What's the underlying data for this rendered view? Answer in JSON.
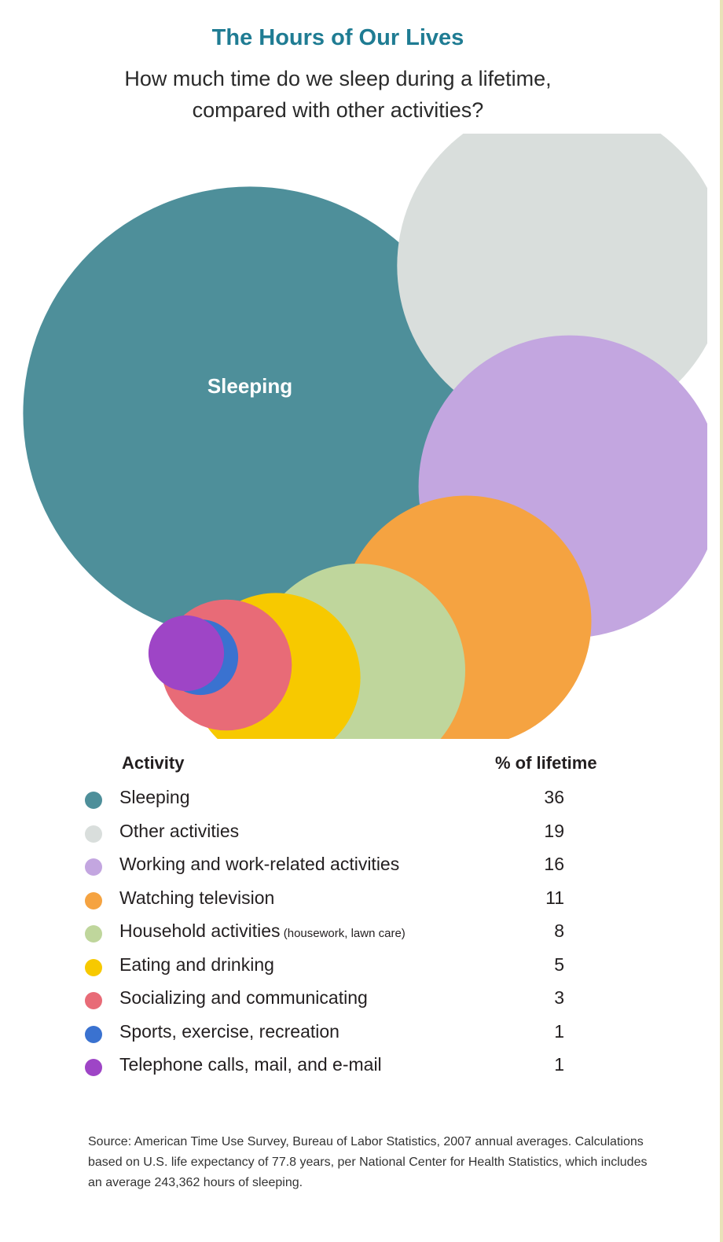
{
  "header": {
    "title": "The Hours of Our Lives",
    "subtitle": "How much time do we sleep during a lifetime, compared with other activities?"
  },
  "table": {
    "activity_header": "Activity",
    "value_header": "% of lifetime"
  },
  "chart_data": {
    "type": "bubble",
    "title": "The Hours of Our Lives",
    "subtitle": "How much time do we sleep during a lifetime, compared with other activities?",
    "value_unit": "% of lifetime",
    "categories": [
      "Sleeping",
      "Other activities",
      "Working and work-related activities",
      "Watching television",
      "Household activities",
      "Eating and drinking",
      "Socializing and communicating",
      "Sports, exercise, recreation",
      "Telephone calls, mail, and e-mail"
    ],
    "category_notes": [
      "",
      "",
      "",
      "",
      "(housework, lawn care)",
      "",
      "",
      "",
      ""
    ],
    "values": [
      36,
      19,
      16,
      11,
      8,
      5,
      3,
      1,
      1
    ],
    "colors": [
      "#4e8f9a",
      "#d9dedc",
      "#c3a6e0",
      "#f5a341",
      "#bfd69c",
      "#f7c900",
      "#e86b77",
      "#3a72d0",
      "#9e45c6"
    ],
    "bubble_label": "Sleeping",
    "legend_placement": "bottom"
  },
  "source": "Source: American Time Use Survey, Bureau of Labor Statistics, 2007 annual averages. Calculations based on U.S. life expectancy of 77.8 years, per National Center for Health Statistics, which includes an average 243,362 hours of sleeping."
}
